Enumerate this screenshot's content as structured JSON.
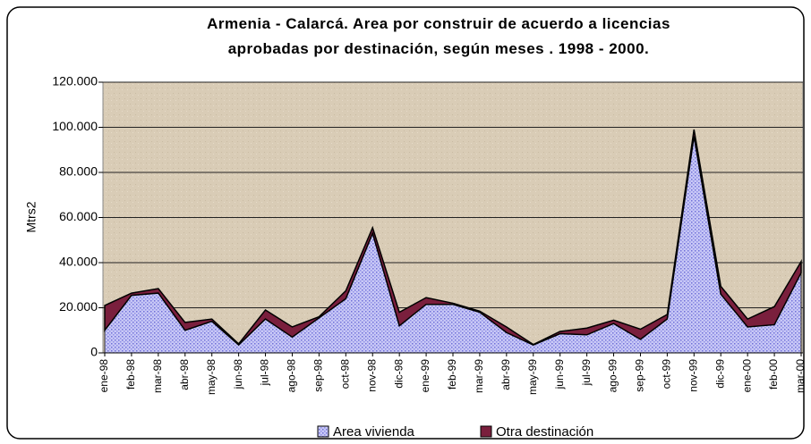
{
  "chart_data": {
    "type": "area",
    "stacked": true,
    "title": "Armenia - Calarcá.  Area por construir de acuerdo a licencias",
    "subtitle": "aprobadas por destinación, según meses . 1998 - 2000.",
    "y_label": "Mtrs2",
    "categories": [
      "ene-98",
      "feb-98",
      "mar-98",
      "abr-98",
      "may-98",
      "jun-98",
      "jul-98",
      "ago-98",
      "sep-98",
      "oct-98",
      "nov-98",
      "dic-98",
      "ene-99",
      "feb-99",
      "mar-99",
      "abr-99",
      "may-99",
      "jun-99",
      "jul-99",
      "ago-99",
      "sep-99",
      "oct-99",
      "nov-99",
      "dic-99",
      "ene-00",
      "feb-00",
      "mar-00"
    ],
    "series": [
      {
        "name": "Area vivienda",
        "color": "#c4c4f4",
        "values": [
          10000,
          25500,
          26500,
          10000,
          14000,
          3500,
          15000,
          7000,
          15500,
          24000,
          53000,
          12000,
          21500,
          21500,
          18000,
          9000,
          3500,
          8500,
          8000,
          13000,
          6000,
          15000,
          96000,
          26000,
          11500,
          12500,
          35500
        ]
      },
      {
        "name": "Otra destinación",
        "color": "#7a1f3d",
        "values": [
          11000,
          1000,
          2000,
          3500,
          1000,
          500,
          4000,
          4500,
          500,
          3500,
          2500,
          6000,
          3000,
          500,
          500,
          2500,
          200,
          1000,
          3000,
          1500,
          4500,
          2000,
          3000,
          3500,
          3500,
          8000,
          5000
        ]
      }
    ],
    "ylim": [
      0,
      120000
    ],
    "yticks": [
      0,
      {
        "value": 20000,
        "label": "20.000"
      },
      {
        "value": 40000,
        "label": "40.000"
      },
      {
        "value": 60000,
        "label": "60.000"
      },
      {
        "value": 80000,
        "label": "80.000"
      },
      {
        "value": 100000,
        "label": "100.000"
      },
      {
        "value": 120000,
        "label": "120.000"
      }
    ],
    "grid": true,
    "legend": "bottom"
  }
}
